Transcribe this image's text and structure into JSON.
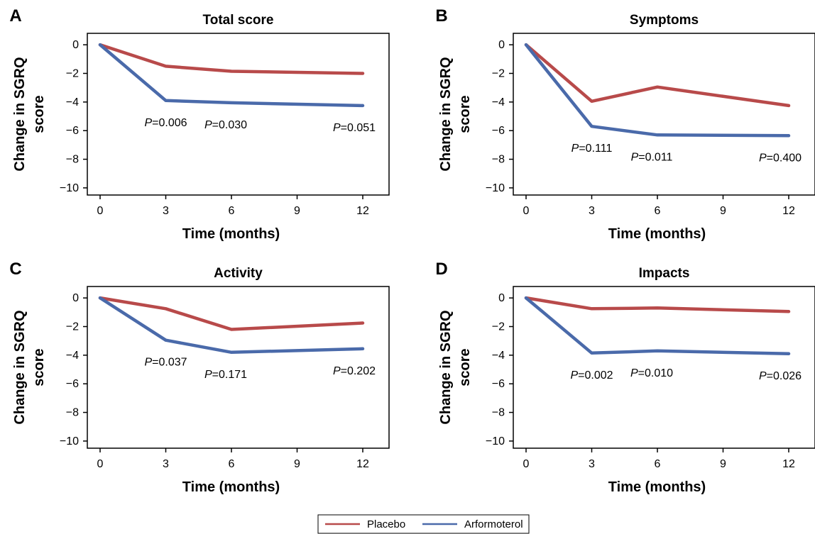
{
  "figure": {
    "type": "line_chart_grid"
  },
  "colors": {
    "placebo": "#b84a4a",
    "arformoterol": "#4a6aaa",
    "axis": "#000000"
  },
  "legend": [
    {
      "name": "Placebo",
      "color": "#b84a4a"
    },
    {
      "name": "Arformoterol",
      "color": "#4a6aaa"
    }
  ],
  "chart_data": [
    {
      "type": "line",
      "letter": "A",
      "title": "Total score",
      "xlabel": "Time (months)",
      "ylabel": [
        "Change in SGRQ",
        "score"
      ],
      "xticks": [
        "0",
        "3",
        "6",
        "9",
        "12"
      ],
      "yticks": [
        "0",
        "−2",
        "−4",
        "−6",
        "−8",
        "−10"
      ],
      "xlim": [
        0,
        12
      ],
      "ylim": [
        -10.5,
        0.8
      ],
      "series": [
        {
          "name": "Placebo",
          "x": [
            0,
            3,
            6,
            12
          ],
          "y": [
            0,
            -1.5,
            -1.85,
            -2.0
          ]
        },
        {
          "name": "Arformoterol",
          "x": [
            0,
            3,
            6,
            12
          ],
          "y": [
            0,
            -3.9,
            -4.05,
            -4.25
          ]
        }
      ],
      "pvalues": [
        {
          "x": 3,
          "text": "=0.006"
        },
        {
          "x": 6,
          "text": "=0.030"
        },
        {
          "x": 12,
          "text": "=0.051"
        }
      ]
    },
    {
      "type": "line",
      "letter": "B",
      "title": "Symptoms",
      "xlabel": "Time (months)",
      "ylabel": [
        "Change in SGRQ",
        "score"
      ],
      "xticks": [
        "0",
        "3",
        "6",
        "9",
        "12"
      ],
      "yticks": [
        "0",
        "−2",
        "−4",
        "−6",
        "−8",
        "−10"
      ],
      "xlim": [
        0,
        12
      ],
      "ylim": [
        -10.5,
        0.8
      ],
      "series": [
        {
          "name": "Placebo",
          "x": [
            0,
            3,
            6,
            12
          ],
          "y": [
            0,
            -3.95,
            -2.95,
            -4.25
          ]
        },
        {
          "name": "Arformoterol",
          "x": [
            0,
            3,
            6,
            12
          ],
          "y": [
            0,
            -5.7,
            -6.3,
            -6.35
          ]
        }
      ],
      "pvalues": [
        {
          "x": 3,
          "text": "=0.111"
        },
        {
          "x": 6,
          "text": "=0.011"
        },
        {
          "x": 12,
          "text": "=0.400"
        }
      ]
    },
    {
      "type": "line",
      "letter": "C",
      "title": "Activity",
      "xlabel": "Time (months)",
      "ylabel": [
        "Change in SGRQ",
        "score"
      ],
      "xticks": [
        "0",
        "3",
        "6",
        "9",
        "12"
      ],
      "yticks": [
        "0",
        "−2",
        "−4",
        "−6",
        "−8",
        "−10"
      ],
      "xlim": [
        0,
        12
      ],
      "ylim": [
        -10.5,
        0.8
      ],
      "series": [
        {
          "name": "Placebo",
          "x": [
            0,
            3,
            6,
            12
          ],
          "y": [
            0,
            -0.75,
            -2.2,
            -1.75
          ]
        },
        {
          "name": "Arformoterol",
          "x": [
            0,
            3,
            6,
            12
          ],
          "y": [
            0,
            -2.95,
            -3.8,
            -3.55
          ]
        }
      ],
      "pvalues": [
        {
          "x": 3,
          "text": "=0.037"
        },
        {
          "x": 6,
          "text": "=0.171"
        },
        {
          "x": 12,
          "text": "=0.202"
        }
      ]
    },
    {
      "type": "line",
      "letter": "D",
      "title": "Impacts",
      "xlabel": "Time (months)",
      "ylabel": [
        "Change in SGRQ",
        "score"
      ],
      "xticks": [
        "0",
        "3",
        "6",
        "9",
        "12"
      ],
      "yticks": [
        "0",
        "−2",
        "−4",
        "−6",
        "−8",
        "−10"
      ],
      "xlim": [
        0,
        12
      ],
      "ylim": [
        -10.5,
        0.8
      ],
      "series": [
        {
          "name": "Placebo",
          "x": [
            0,
            3,
            6,
            12
          ],
          "y": [
            0,
            -0.75,
            -0.7,
            -0.95
          ]
        },
        {
          "name": "Arformoterol",
          "x": [
            0,
            3,
            6,
            12
          ],
          "y": [
            0,
            -3.85,
            -3.7,
            -3.9
          ]
        }
      ],
      "pvalues": [
        {
          "x": 3,
          "text": "=0.002"
        },
        {
          "x": 6,
          "text": "=0.010"
        },
        {
          "x": 12,
          "text": "=0.026"
        }
      ]
    }
  ]
}
